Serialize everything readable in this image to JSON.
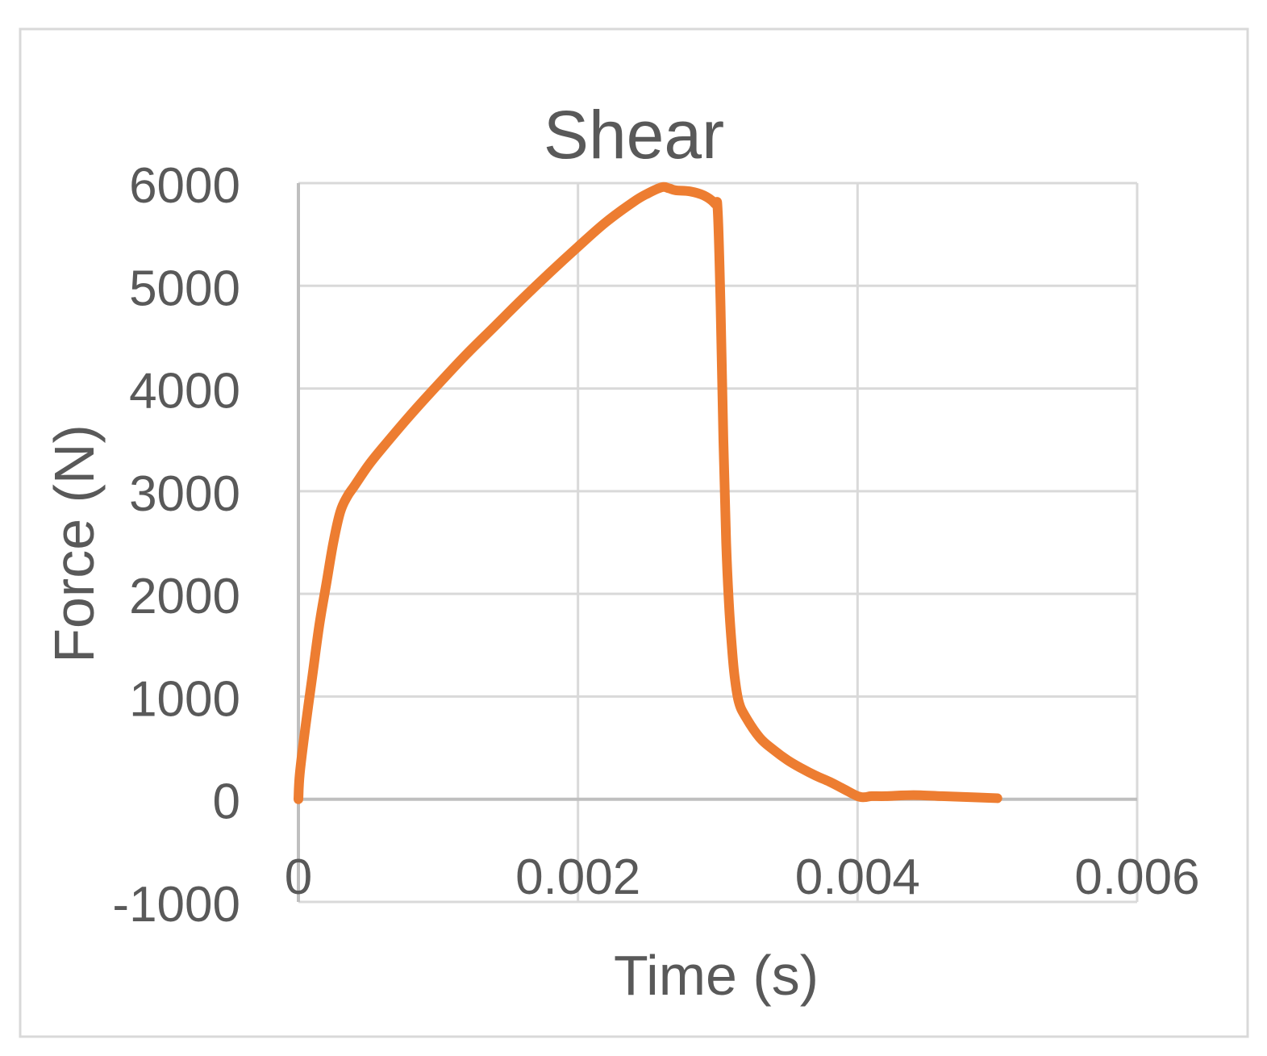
{
  "chart_data": {
    "type": "line",
    "title": "Shear",
    "xlabel": "Time (s)",
    "ylabel": "Force (N)",
    "xlim": [
      0,
      0.006
    ],
    "ylim": [
      -1000,
      6000
    ],
    "x_ticks": [
      {
        "value": 0,
        "label": "0"
      },
      {
        "value": 0.002,
        "label": "0.002"
      },
      {
        "value": 0.004,
        "label": "0.004"
      },
      {
        "value": 0.006,
        "label": "0.006"
      }
    ],
    "y_ticks": [
      {
        "value": -1000,
        "label": "-1000"
      },
      {
        "value": 0,
        "label": "0"
      },
      {
        "value": 1000,
        "label": "1000"
      },
      {
        "value": 2000,
        "label": "2000"
      },
      {
        "value": 3000,
        "label": "3000"
      },
      {
        "value": 4000,
        "label": "4000"
      },
      {
        "value": 5000,
        "label": "5000"
      },
      {
        "value": 6000,
        "label": "6000"
      }
    ],
    "grid": true,
    "legend": "none",
    "series": [
      {
        "color": "#ED7D31",
        "x": [
          0,
          1e-05,
          5e-05,
          0.0001,
          0.00015,
          0.0002,
          0.00025,
          0.0003,
          0.00035,
          0.0004,
          0.0005,
          0.0006,
          0.0008,
          0.001,
          0.0012,
          0.0014,
          0.0016,
          0.0018,
          0.002,
          0.0022,
          0.0024,
          0.0025,
          0.0026,
          0.00265,
          0.0027,
          0.0028,
          0.0029,
          0.00298,
          0.003,
          0.00302,
          0.00304,
          0.00306,
          0.00308,
          0.0031,
          0.00312,
          0.00315,
          0.0032,
          0.0033,
          0.0034,
          0.0035,
          0.0036,
          0.0037,
          0.0038,
          0.0039,
          0.004,
          0.00405,
          0.0041,
          0.0042,
          0.0044,
          0.0046,
          0.0048,
          0.005
        ],
        "y": [
          0,
          250,
          700,
          1200,
          1700,
          2100,
          2500,
          2800,
          2950,
          3050,
          3250,
          3420,
          3740,
          4040,
          4330,
          4600,
          4870,
          5130,
          5380,
          5620,
          5820,
          5900,
          5960,
          5950,
          5930,
          5920,
          5880,
          5800,
          5720,
          4800,
          3500,
          2500,
          1900,
          1500,
          1200,
          950,
          800,
          600,
          480,
          380,
          300,
          230,
          170,
          100,
          30,
          20,
          30,
          30,
          40,
          30,
          20,
          10
        ]
      }
    ]
  }
}
